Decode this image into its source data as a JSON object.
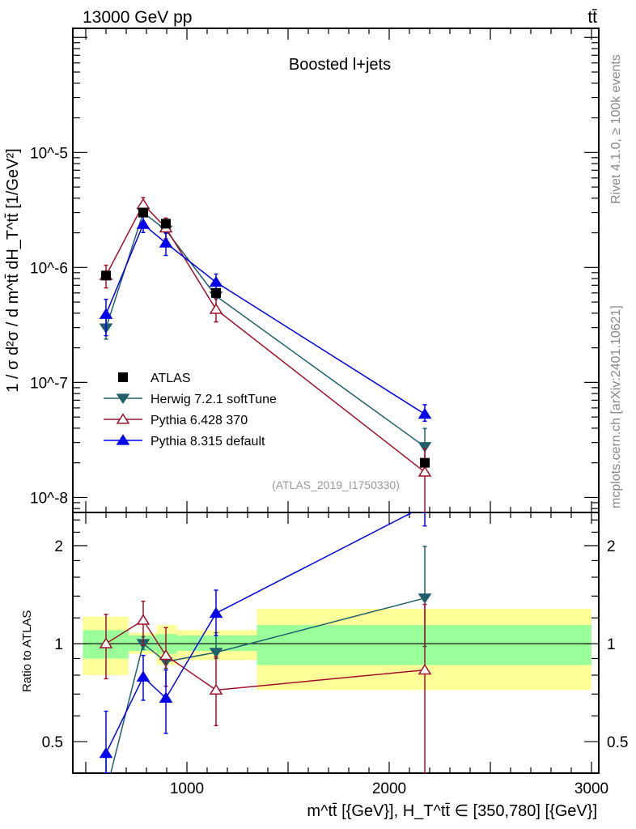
{
  "chart_data": {
    "type": "line",
    "header_left": "13000 GeV pp",
    "header_right": "tt̄",
    "title": "Boosted l+jets",
    "analysis_label": "(ATLAS_2019_I1750330)",
    "side_label_top": "Rivet 4.1.0, ≥ 100k events",
    "side_label_bottom": "mcplots.cern.ch [arXiv:2401.10621]",
    "ylabel": "1 / σ d²σ / d m^tt̄ dH_T^tt̄ [1/GeV²]",
    "ratio_ylabel": "Ratio to ATLAS",
    "xlabel": "m^tt̄ [{GeV}], H_T^tt̄ ∈ [350,780] [{GeV}]",
    "xlim": [
      436,
      3036
    ],
    "ylim": [
      7.4e-09,
      0.00012
    ],
    "yscale": "log",
    "ratio_ylim": [
      0.4,
      2.53
    ],
    "x_ticks": [
      "1000",
      "2000",
      "3000"
    ],
    "y_ticks": [
      "10^-5",
      "10^-6",
      "10^-7",
      "10^-8"
    ],
    "ratio_ticks": [
      "2",
      "1",
      "0.5"
    ],
    "bins": [
      [
        486,
        712
      ],
      [
        712,
        850
      ],
      [
        850,
        951
      ],
      [
        951,
        1346
      ],
      [
        1346,
        3000
      ]
    ],
    "x": [
      600,
      784,
      896,
      1144,
      2176
    ],
    "data": {
      "name": "ATLAS",
      "values": [
        8.5e-07,
        3e-06,
        2.4e-06,
        6e-07,
        2e-08
      ],
      "stat_band": [
        [
          0.9,
          1.1
        ],
        [
          0.95,
          1.06
        ],
        [
          0.93,
          1.07
        ],
        [
          0.95,
          1.06
        ],
        [
          0.86,
          1.14
        ]
      ],
      "total_band": [
        [
          0.8,
          1.21
        ],
        [
          0.93,
          1.08
        ],
        [
          0.86,
          1.14
        ],
        [
          0.89,
          1.1
        ],
        [
          0.72,
          1.28
        ]
      ],
      "color": "#000000"
    },
    "series": [
      {
        "name": "Herwig 7.2.1 softTune",
        "color": "#205e6a",
        "marker": "triangle-down",
        "ratio": [
          0.35,
          1.0,
          0.88,
          0.94,
          1.38
        ],
        "ratio_err": [
          [
            0.28,
            0.45
          ],
          [
            0.96,
            1.05
          ],
          [
            0.84,
            0.93
          ],
          [
            0.9,
            1.08
          ],
          [
            0.98,
            1.99
          ]
        ]
      },
      {
        "name": "Pythia 6.428 370",
        "color": "#a0102a",
        "marker": "triangle-open",
        "ratio": [
          1.0,
          1.18,
          0.92,
          0.72,
          0.83
        ],
        "ratio_err": [
          [
            0.78,
            1.23
          ],
          [
            0.99,
            1.35
          ],
          [
            0.74,
            1.12
          ],
          [
            0.56,
            0.91
          ],
          [
            0.3,
            1.32
          ]
        ]
      },
      {
        "name": "Pythia 8.315 default",
        "color": "#0000ee",
        "marker": "triangle-up",
        "ratio": [
          0.46,
          0.79,
          0.68,
          1.24,
          2.65
        ],
        "ratio_err": [
          [
            0.3,
            0.62
          ],
          [
            0.67,
            0.92
          ],
          [
            0.53,
            0.83
          ],
          [
            1.06,
            1.46
          ],
          [
            2.3,
            3.2
          ]
        ]
      }
    ],
    "legend_placement": "lower-left"
  }
}
